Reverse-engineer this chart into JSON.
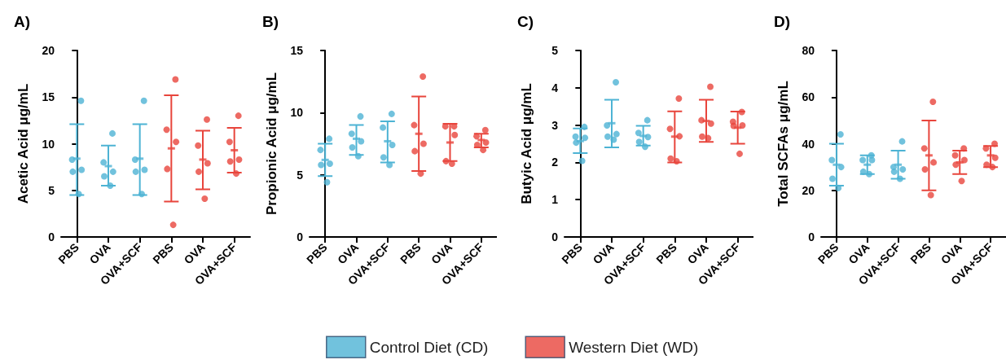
{
  "chart_data": [
    {
      "type": "scatter",
      "title": "A)",
      "ylabel": "Acetic Acid μg/mL",
      "categories": [
        "PBS",
        "OVA",
        "OVA+SCF",
        "PBS",
        "OVA",
        "OVA+SCF"
      ],
      "ylim": [
        0,
        20
      ],
      "yticks": [
        0,
        5,
        10,
        15,
        20
      ],
      "legend": "bottom",
      "series": [
        {
          "name": "Control Diet (CD)",
          "color": "#4db3d4",
          "values": [
            8.4,
            7.6,
            8.4,
            null,
            null,
            null
          ],
          "errors": [
            [
              4.5,
              12.1
            ],
            [
              5.5,
              9.8
            ],
            [
              4.5,
              12.1
            ],
            null,
            null,
            null
          ]
        },
        {
          "name": "Western Diet (WD)",
          "color": "#e8453c",
          "values": [
            null,
            null,
            null,
            9.5,
            8.3,
            9.3
          ],
          "errors": [
            null,
            null,
            null,
            [
              3.8,
              15.2
            ],
            [
              5.1,
              11.4
            ],
            [
              6.9,
              11.7
            ]
          ]
        },
        {
          "marker": "circle",
          "color": "#4db3d4",
          "values": [
            14.6,
            11.1,
            14.6,
            null,
            null,
            null
          ]
        },
        {
          "marker": "circle",
          "color": "#4db3d4",
          "values": [
            8.3,
            8.0,
            8.3,
            null,
            null,
            null
          ]
        },
        {
          "marker": "circle",
          "color": "#4db3d4",
          "values": [
            7.2,
            7.0,
            7.2,
            null,
            null,
            null
          ]
        },
        {
          "marker": "circle",
          "color": "#4db3d4",
          "values": [
            7.0,
            6.5,
            7.0,
            null,
            null,
            null
          ]
        },
        {
          "marker": "circle",
          "color": "#4db3d4",
          "values": [
            4.6,
            5.5,
            4.6,
            null,
            null,
            null
          ]
        },
        {
          "marker": "circle",
          "color": "#e8453c",
          "values": [
            null,
            null,
            null,
            16.9,
            12.6,
            13.0
          ]
        },
        {
          "marker": "circle",
          "color": "#e8453c",
          "values": [
            null,
            null,
            null,
            11.5,
            9.8,
            10.2
          ]
        },
        {
          "marker": "circle",
          "color": "#e8453c",
          "values": [
            null,
            null,
            null,
            10.2,
            7.9,
            8.3
          ]
        },
        {
          "marker": "circle",
          "color": "#e8453c",
          "values": [
            null,
            null,
            null,
            7.3,
            7.0,
            8.1
          ]
        },
        {
          "marker": "circle",
          "color": "#e8453c",
          "values": [
            null,
            null,
            null,
            1.3,
            4.1,
            6.8
          ]
        }
      ]
    },
    {
      "type": "scatter",
      "title": "B)",
      "ylabel": "Propionic Acid μg/mL",
      "categories": [
        "PBS",
        "OVA",
        "OVA+SCF",
        "PBS",
        "OVA",
        "OVA+SCF"
      ],
      "ylim": [
        0,
        15
      ],
      "yticks": [
        0,
        5,
        10,
        15
      ],
      "series": [
        {
          "color": "#4db3d4",
          "values": [
            6.2,
            7.9,
            7.7,
            null,
            null,
            null
          ],
          "errors": [
            [
              4.9,
              7.5
            ],
            [
              6.6,
              9.0
            ],
            [
              6.0,
              9.3
            ],
            null,
            null,
            null
          ]
        },
        {
          "color": "#e8453c",
          "values": [
            null,
            null,
            null,
            8.3,
            7.6,
            7.8
          ],
          "errors": [
            null,
            null,
            null,
            [
              5.3,
              11.3
            ],
            [
              6.1,
              9.1
            ],
            [
              7.2,
              8.3
            ]
          ]
        },
        {
          "marker": "circle",
          "color": "#4db3d4",
          "values": [
            7.9,
            9.7,
            9.9,
            null,
            null,
            null
          ]
        },
        {
          "marker": "circle",
          "color": "#4db3d4",
          "values": [
            7.0,
            8.3,
            8.8,
            null,
            null,
            null
          ]
        },
        {
          "marker": "circle",
          "color": "#4db3d4",
          "values": [
            5.9,
            7.7,
            7.4,
            null,
            null,
            null
          ]
        },
        {
          "marker": "circle",
          "color": "#4db3d4",
          "values": [
            5.8,
            7.2,
            6.4,
            null,
            null,
            null
          ]
        },
        {
          "marker": "circle",
          "color": "#4db3d4",
          "values": [
            4.4,
            6.5,
            5.8,
            null,
            null,
            null
          ]
        },
        {
          "marker": "circle",
          "color": "#e8453c",
          "values": [
            null,
            null,
            null,
            12.9,
            8.9,
            8.6
          ]
        },
        {
          "marker": "circle",
          "color": "#e8453c",
          "values": [
            null,
            null,
            null,
            9.0,
            8.9,
            8.1
          ]
        },
        {
          "marker": "circle",
          "color": "#e8453c",
          "values": [
            null,
            null,
            null,
            7.5,
            8.2,
            7.6
          ]
        },
        {
          "marker": "circle",
          "color": "#e8453c",
          "values": [
            null,
            null,
            null,
            6.9,
            6.1,
            7.4
          ]
        },
        {
          "marker": "circle",
          "color": "#e8453c",
          "values": [
            null,
            null,
            null,
            5.1,
            5.9,
            7.0
          ]
        }
      ]
    },
    {
      "type": "scatter",
      "title": "C)",
      "ylabel": "Butyic Acid μg/mL",
      "categories": [
        "PBS",
        "OVA",
        "OVA+SCF",
        "PBS",
        "OVA",
        "OVA+SCF"
      ],
      "ylim": [
        0,
        5
      ],
      "yticks": [
        0,
        1,
        2,
        3,
        4,
        5
      ],
      "series": [
        {
          "color": "#4db3d4",
          "values": [
            2.57,
            3.05,
            2.71,
            null,
            null,
            null
          ],
          "errors": [
            [
              2.25,
              2.91
            ],
            [
              2.4,
              3.68
            ],
            [
              2.45,
              2.98
            ],
            null,
            null,
            null
          ]
        },
        {
          "color": "#e8453c",
          "values": [
            null,
            null,
            null,
            2.69,
            3.11,
            2.93
          ],
          "errors": [
            null,
            null,
            null,
            [
              2.0,
              3.37
            ],
            [
              2.55,
              3.68
            ],
            [
              2.5,
              3.36
            ]
          ]
        },
        {
          "marker": "circle",
          "color": "#4db3d4",
          "values": [
            2.95,
            4.15,
            3.13,
            null,
            null,
            null
          ]
        },
        {
          "marker": "circle",
          "color": "#4db3d4",
          "values": [
            2.69,
            2.99,
            2.79,
            null,
            null,
            null
          ]
        },
        {
          "marker": "circle",
          "color": "#4db3d4",
          "values": [
            2.66,
            2.76,
            2.68,
            null,
            null,
            null
          ]
        },
        {
          "marker": "circle",
          "color": "#4db3d4",
          "values": [
            2.53,
            2.69,
            2.55,
            null,
            null,
            null
          ]
        },
        {
          "marker": "circle",
          "color": "#4db3d4",
          "values": [
            2.04,
            2.61,
            2.42,
            null,
            null,
            null
          ]
        },
        {
          "marker": "circle",
          "color": "#e8453c",
          "values": [
            null,
            null,
            null,
            3.71,
            4.03,
            3.35
          ]
        },
        {
          "marker": "circle",
          "color": "#e8453c",
          "values": [
            null,
            null,
            null,
            2.9,
            3.13,
            3.09
          ]
        },
        {
          "marker": "circle",
          "color": "#e8453c",
          "values": [
            null,
            null,
            null,
            2.7,
            3.04,
            2.99
          ]
        },
        {
          "marker": "circle",
          "color": "#e8453c",
          "values": [
            null,
            null,
            null,
            2.1,
            2.69,
            2.98
          ]
        },
        {
          "marker": "circle",
          "color": "#e8453c",
          "values": [
            null,
            null,
            null,
            2.03,
            2.65,
            2.23
          ]
        }
      ]
    },
    {
      "type": "scatter",
      "title": "D)",
      "ylabel": "Total SCFAs μg/mL",
      "categories": [
        "PBS",
        "OVA",
        "OVA+SCF",
        "PBS",
        "OVA",
        "OVA+SCF"
      ],
      "ylim": [
        0,
        80
      ],
      "yticks": [
        0,
        20,
        40,
        60,
        80
      ],
      "series": [
        {
          "color": "#4db3d4",
          "values": [
            31,
            31,
            31,
            null,
            null,
            null
          ],
          "errors": [
            [
              22,
              40
            ],
            [
              27,
              35
            ],
            [
              25,
              37
            ],
            null,
            null,
            null
          ]
        },
        {
          "color": "#e8453c",
          "values": [
            null,
            null,
            null,
            35,
            32,
            35
          ],
          "errors": [
            null,
            null,
            null,
            [
              20,
              50
            ],
            [
              27,
              37
            ],
            [
              30,
              39
            ]
          ]
        },
        {
          "marker": "circle",
          "color": "#4db3d4",
          "values": [
            44,
            35,
            41,
            null,
            null,
            null
          ]
        },
        {
          "marker": "circle",
          "color": "#4db3d4",
          "values": [
            33,
            33,
            30,
            null,
            null,
            null
          ]
        },
        {
          "marker": "circle",
          "color": "#4db3d4",
          "values": [
            30,
            33,
            29,
            null,
            null,
            null
          ]
        },
        {
          "marker": "circle",
          "color": "#4db3d4",
          "values": [
            25,
            28,
            28,
            null,
            null,
            null
          ]
        },
        {
          "marker": "circle",
          "color": "#4db3d4",
          "values": [
            21,
            27,
            25,
            null,
            null,
            null
          ]
        },
        {
          "marker": "circle",
          "color": "#e8453c",
          "values": [
            null,
            null,
            null,
            58,
            38,
            40
          ]
        },
        {
          "marker": "circle",
          "color": "#e8453c",
          "values": [
            null,
            null,
            null,
            38,
            35,
            38
          ]
        },
        {
          "marker": "circle",
          "color": "#e8453c",
          "values": [
            null,
            null,
            null,
            32,
            33,
            34
          ]
        },
        {
          "marker": "circle",
          "color": "#e8453c",
          "values": [
            null,
            null,
            null,
            29,
            31,
            31
          ]
        },
        {
          "marker": "circle",
          "color": "#e8453c",
          "values": [
            null,
            null,
            null,
            18,
            24,
            30
          ]
        }
      ]
    }
  ]
}
